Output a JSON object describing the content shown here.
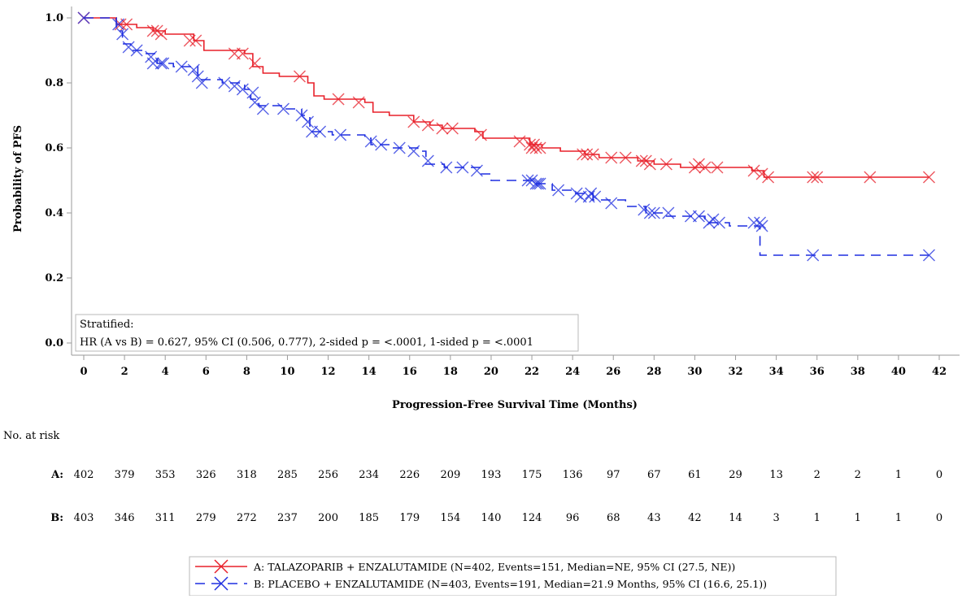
{
  "chart_data": {
    "type": "line",
    "subtype": "kaplan-meier",
    "xlabel": "Progression-Free Survival Time (Months)",
    "ylabel": "Probability of PFS",
    "xlim": [
      0,
      42
    ],
    "ylim": [
      0,
      1.0
    ],
    "x_ticks": [
      "0",
      "2",
      "4",
      "6",
      "8",
      "10",
      "12",
      "14",
      "16",
      "18",
      "20",
      "22",
      "24",
      "26",
      "28",
      "30",
      "32",
      "34",
      "36",
      "38",
      "40",
      "42"
    ],
    "y_ticks": [
      "0.0",
      "0.2",
      "0.4",
      "0.6",
      "0.8",
      "1.0"
    ],
    "grid": false,
    "annotation": {
      "line1": "Stratified:",
      "line2": "HR (A vs B) = 0.627, 95% CI (0.506, 0.777), 2-sided p = <.0001, 1-sided p = <.0001"
    },
    "series": [
      {
        "name": "A: TALAZOPARIB + ENZALUTAMIDE (N=402, Events=151, Median=NE, 95% CI (27.5, NE))",
        "color": "#e8202a",
        "dash": "solid",
        "steps": [
          [
            0,
            1.0
          ],
          [
            1.6,
            0.98
          ],
          [
            2.6,
            0.97
          ],
          [
            3.4,
            0.96
          ],
          [
            4.0,
            0.95
          ],
          [
            5.4,
            0.93
          ],
          [
            5.9,
            0.9
          ],
          [
            7.9,
            0.89
          ],
          [
            8.3,
            0.85
          ],
          [
            8.8,
            0.83
          ],
          [
            9.6,
            0.82
          ],
          [
            11.0,
            0.8
          ],
          [
            11.3,
            0.76
          ],
          [
            11.8,
            0.75
          ],
          [
            13.8,
            0.74
          ],
          [
            14.2,
            0.71
          ],
          [
            15.0,
            0.7
          ],
          [
            16.2,
            0.68
          ],
          [
            17.0,
            0.67
          ],
          [
            17.6,
            0.66
          ],
          [
            18.4,
            0.66
          ],
          [
            19.2,
            0.65
          ],
          [
            19.6,
            0.63
          ],
          [
            20.3,
            0.63
          ],
          [
            21.9,
            0.61
          ],
          [
            22.5,
            0.6
          ],
          [
            23.4,
            0.59
          ],
          [
            24.6,
            0.58
          ],
          [
            25.3,
            0.57
          ],
          [
            26.0,
            0.57
          ],
          [
            27.2,
            0.56
          ],
          [
            28.0,
            0.55
          ],
          [
            29.3,
            0.54
          ],
          [
            32.8,
            0.53
          ],
          [
            33.4,
            0.51
          ]
        ],
        "end_x": 41.5,
        "censors": [
          [
            0.0,
            1.0
          ],
          [
            1.8,
            0.98
          ],
          [
            2.1,
            0.98
          ],
          [
            3.4,
            0.96
          ],
          [
            3.6,
            0.96
          ],
          [
            3.8,
            0.95
          ],
          [
            5.2,
            0.93
          ],
          [
            5.5,
            0.93
          ],
          [
            7.4,
            0.89
          ],
          [
            7.8,
            0.89
          ],
          [
            8.4,
            0.86
          ],
          [
            10.6,
            0.82
          ],
          [
            12.5,
            0.75
          ],
          [
            13.5,
            0.74
          ],
          [
            16.2,
            0.68
          ],
          [
            16.9,
            0.67
          ],
          [
            17.6,
            0.66
          ],
          [
            18.1,
            0.66
          ],
          [
            19.5,
            0.64
          ],
          [
            21.4,
            0.62
          ],
          [
            21.9,
            0.61
          ],
          [
            22.0,
            0.6
          ],
          [
            22.1,
            0.61
          ],
          [
            22.2,
            0.6
          ],
          [
            22.4,
            0.6
          ],
          [
            24.5,
            0.58
          ],
          [
            24.7,
            0.58
          ],
          [
            25.0,
            0.58
          ],
          [
            25.9,
            0.57
          ],
          [
            26.6,
            0.57
          ],
          [
            27.4,
            0.56
          ],
          [
            27.6,
            0.56
          ],
          [
            27.8,
            0.55
          ],
          [
            28.6,
            0.55
          ],
          [
            30.0,
            0.54
          ],
          [
            30.2,
            0.55
          ],
          [
            30.5,
            0.54
          ],
          [
            31.1,
            0.54
          ],
          [
            32.9,
            0.53
          ],
          [
            33.3,
            0.52
          ],
          [
            33.6,
            0.51
          ],
          [
            35.8,
            0.51
          ],
          [
            36.0,
            0.51
          ],
          [
            38.6,
            0.51
          ],
          [
            41.5,
            0.51
          ]
        ]
      },
      {
        "name": "B: PLACEBO + ENZALUTAMIDE (N=403, Events=191, Median=21.9 Months, 95% CI (16.6, 25.1))",
        "color": "#1f2fe0",
        "dash": "dashed",
        "steps": [
          [
            0,
            1.0
          ],
          [
            1.6,
            0.96
          ],
          [
            1.9,
            0.92
          ],
          [
            2.3,
            0.9
          ],
          [
            3.0,
            0.89
          ],
          [
            3.6,
            0.86
          ],
          [
            4.4,
            0.85
          ],
          [
            5.6,
            0.81
          ],
          [
            6.8,
            0.8
          ],
          [
            7.9,
            0.78
          ],
          [
            8.2,
            0.75
          ],
          [
            8.6,
            0.73
          ],
          [
            9.8,
            0.72
          ],
          [
            10.7,
            0.7
          ],
          [
            11.1,
            0.65
          ],
          [
            12.2,
            0.64
          ],
          [
            13.8,
            0.63
          ],
          [
            14.1,
            0.61
          ],
          [
            15.1,
            0.6
          ],
          [
            16.4,
            0.59
          ],
          [
            16.8,
            0.55
          ],
          [
            17.7,
            0.54
          ],
          [
            19.5,
            0.52
          ],
          [
            20.0,
            0.5
          ],
          [
            22.2,
            0.49
          ],
          [
            23.0,
            0.47
          ],
          [
            24.0,
            0.46
          ],
          [
            25.0,
            0.44
          ],
          [
            26.6,
            0.42
          ],
          [
            27.6,
            0.4
          ],
          [
            28.4,
            0.39
          ],
          [
            29.8,
            0.39
          ],
          [
            30.5,
            0.37
          ],
          [
            31.7,
            0.36
          ],
          [
            33.2,
            0.27
          ]
        ],
        "end_x": 41.5,
        "censors": [
          [
            0.0,
            1.0
          ],
          [
            1.7,
            0.98
          ],
          [
            1.9,
            0.95
          ],
          [
            2.2,
            0.91
          ],
          [
            2.6,
            0.9
          ],
          [
            3.3,
            0.88
          ],
          [
            3.4,
            0.86
          ],
          [
            3.8,
            0.86
          ],
          [
            3.9,
            0.86
          ],
          [
            4.8,
            0.85
          ],
          [
            5.4,
            0.84
          ],
          [
            5.6,
            0.82
          ],
          [
            5.8,
            0.8
          ],
          [
            6.9,
            0.8
          ],
          [
            7.4,
            0.79
          ],
          [
            7.8,
            0.78
          ],
          [
            8.3,
            0.77
          ],
          [
            8.4,
            0.74
          ],
          [
            8.8,
            0.72
          ],
          [
            9.8,
            0.72
          ],
          [
            10.7,
            0.7
          ],
          [
            11.0,
            0.68
          ],
          [
            11.2,
            0.65
          ],
          [
            11.6,
            0.65
          ],
          [
            12.6,
            0.64
          ],
          [
            14.1,
            0.62
          ],
          [
            14.6,
            0.61
          ],
          [
            15.5,
            0.6
          ],
          [
            16.2,
            0.59
          ],
          [
            16.9,
            0.56
          ],
          [
            17.8,
            0.54
          ],
          [
            18.6,
            0.54
          ],
          [
            19.3,
            0.53
          ],
          [
            21.8,
            0.5
          ],
          [
            22.0,
            0.5
          ],
          [
            22.2,
            0.49
          ],
          [
            22.3,
            0.49
          ],
          [
            22.4,
            0.49
          ],
          [
            23.3,
            0.47
          ],
          [
            24.2,
            0.46
          ],
          [
            24.4,
            0.45
          ],
          [
            24.8,
            0.45
          ],
          [
            24.9,
            0.46
          ],
          [
            25.1,
            0.45
          ],
          [
            25.9,
            0.43
          ],
          [
            27.5,
            0.41
          ],
          [
            27.8,
            0.4
          ],
          [
            28.0,
            0.4
          ],
          [
            28.7,
            0.4
          ],
          [
            29.8,
            0.39
          ],
          [
            30.2,
            0.39
          ],
          [
            30.7,
            0.37
          ],
          [
            30.9,
            0.38
          ],
          [
            31.2,
            0.37
          ],
          [
            32.9,
            0.37
          ],
          [
            33.2,
            0.37
          ],
          [
            33.3,
            0.36
          ],
          [
            35.8,
            0.27
          ],
          [
            41.5,
            0.27
          ]
        ]
      }
    ],
    "risk_table": {
      "title": "No. at risk",
      "rows": [
        {
          "label": "A:",
          "values": [
            "402",
            "379",
            "353",
            "326",
            "318",
            "285",
            "256",
            "234",
            "226",
            "209",
            "193",
            "175",
            "136",
            "97",
            "67",
            "61",
            "29",
            "13",
            "2",
            "2",
            "1",
            "0"
          ]
        },
        {
          "label": "B:",
          "values": [
            "403",
            "346",
            "311",
            "279",
            "272",
            "237",
            "200",
            "185",
            "179",
            "154",
            "140",
            "124",
            "96",
            "68",
            "43",
            "42",
            "14",
            "3",
            "1",
            "1",
            "1",
            "0"
          ]
        }
      ]
    }
  }
}
